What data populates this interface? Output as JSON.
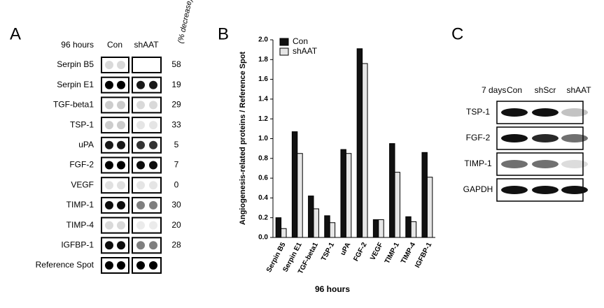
{
  "panel_a": {
    "letter": "A",
    "time": "96 hours",
    "columns": [
      "Con",
      "shAAT"
    ],
    "decrease_header": "(% decrease)",
    "rows": [
      {
        "name": "Serpin B5",
        "decrease": 58
      },
      {
        "name": "Serpin E1",
        "decrease": 19
      },
      {
        "name": "TGF-beta1",
        "decrease": 29
      },
      {
        "name": "TSP-1",
        "decrease": 33
      },
      {
        "name": "uPA",
        "decrease": 5
      },
      {
        "name": "FGF-2",
        "decrease": 7
      },
      {
        "name": "VEGF",
        "decrease": 0
      },
      {
        "name": "TIMP-1",
        "decrease": 30
      },
      {
        "name": "TIMP-4",
        "decrease": 20
      },
      {
        "name": "IGFBP-1",
        "decrease": 28
      },
      {
        "name": "Reference  Spot",
        "decrease": null
      }
    ]
  },
  "chart_data": {
    "type": "bar",
    "letter": "B",
    "xlabel": "96 hours",
    "ylabel": "Angiogenesis-related proteins / Reference Spot",
    "categories": [
      "Serpin B5",
      "Serpin E1",
      "TGF-beta1",
      "TSP-1",
      "uPA",
      "FGF-2",
      "VEGF",
      "TIMP-1",
      "TIMP-4",
      "IGFBP-1"
    ],
    "series": [
      {
        "name": "Con",
        "color": "#111111",
        "values": [
          0.2,
          1.07,
          0.42,
          0.22,
          0.89,
          1.91,
          0.18,
          0.95,
          0.21,
          0.86
        ]
      },
      {
        "name": "shAAT",
        "color": "#e6e6e6",
        "values": [
          0.09,
          0.85,
          0.29,
          0.15,
          0.85,
          1.76,
          0.18,
          0.66,
          0.16,
          0.61
        ]
      }
    ],
    "ylim": [
      0,
      2.0
    ],
    "yticks": [
      {
        "value": 0,
        "label": "0.0"
      },
      0.2,
      0.4,
      0.6,
      0.8,
      {
        "value": 1,
        "label": "1.0"
      },
      1.2,
      1.4,
      1.6,
      1.8,
      {
        "value": 2,
        "label": "2.0"
      }
    ],
    "legend": "top-left"
  },
  "panel_c": {
    "letter": "C",
    "time": "7 days",
    "columns": [
      "Con",
      "shScr",
      "shAAT"
    ],
    "rows": [
      "TSP-1",
      "FGF-2",
      "TIMP-1",
      "GAPDH"
    ]
  }
}
